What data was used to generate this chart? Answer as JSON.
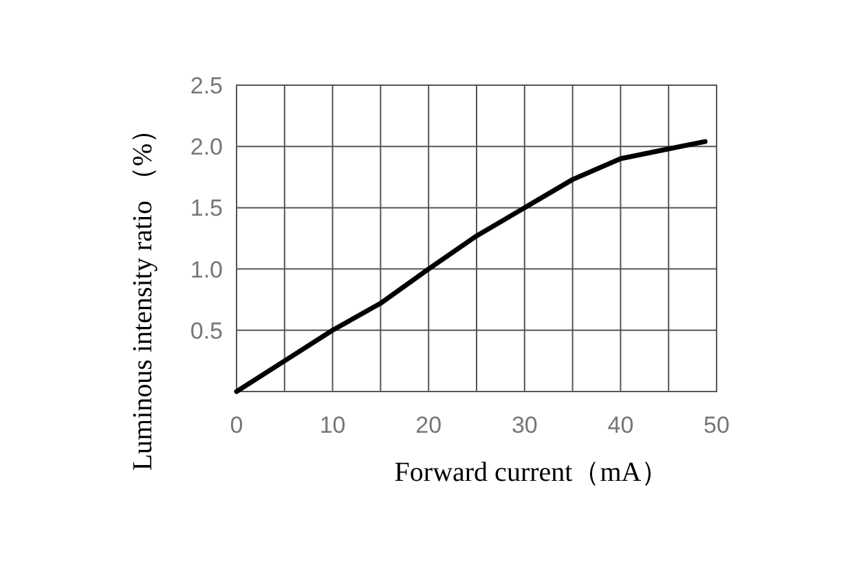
{
  "chart_data": {
    "type": "line",
    "xlabel": "Forward current（mA）",
    "ylabel": "Luminous intensity ratio （%）",
    "x": [
      0,
      5,
      10,
      15,
      20,
      25,
      30,
      35,
      40,
      45,
      48.8
    ],
    "series": [
      {
        "color": "#000000",
        "values": [
          0,
          0.25,
          0.5,
          0.72,
          1.0,
          1.27,
          1.5,
          1.73,
          1.9,
          1.98,
          2.04
        ]
      }
    ],
    "xlim": [
      0,
      50
    ],
    "ylim": [
      0,
      2.5
    ],
    "xticks": [
      0,
      {
        "value": 5,
        "label": null
      },
      10,
      {
        "value": 15,
        "label": null
      },
      20,
      {
        "value": 25,
        "label": null
      },
      30,
      {
        "value": 35,
        "label": null
      },
      40,
      {
        "value": 45,
        "label": null
      },
      50
    ],
    "yticks": [
      {
        "value": 0,
        "label": null
      },
      0.5,
      {
        "value": 1,
        "label": "1.0"
      },
      1.5,
      {
        "value": 2,
        "label": "2.0"
      },
      2.5
    ],
    "grid": true,
    "marker": "none",
    "line_style": "solid"
  }
}
